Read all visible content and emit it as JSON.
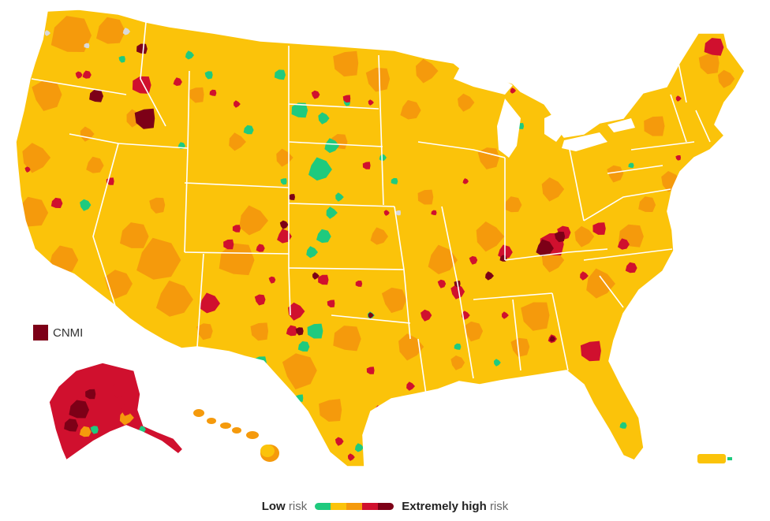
{
  "legend": {
    "low_strong": "Low",
    "low_rest": "risk",
    "high_strong": "Extremely high",
    "high_rest": "risk",
    "scale_colors": [
      "#1fca7e",
      "#fbc30a",
      "#f59a0c",
      "#d0102e",
      "#7d0017"
    ]
  },
  "cnmi": {
    "label": "CNMI",
    "color": "#7d0017"
  },
  "colors": {
    "green": "#1fca7e",
    "yellow": "#fbc30a",
    "orange": "#f59a0c",
    "red": "#d0102e",
    "darkred": "#7d0017",
    "nodata": "#d9d9d9",
    "border": "#ffffff"
  }
}
